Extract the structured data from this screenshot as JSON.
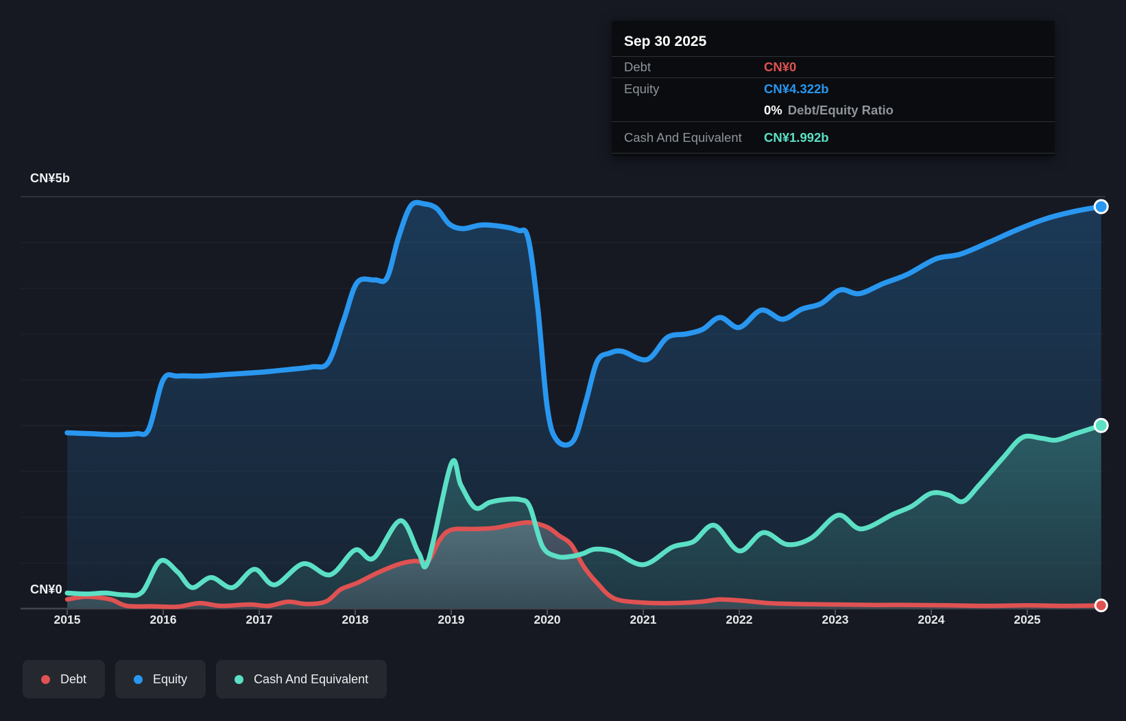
{
  "y_axis": {
    "top_label": "CN¥5b",
    "bottom_label": "CN¥0"
  },
  "x_axis": {
    "years": [
      "2015",
      "2016",
      "2017",
      "2018",
      "2019",
      "2020",
      "2021",
      "2022",
      "2023",
      "2024",
      "2025"
    ]
  },
  "tooltip": {
    "date": "Sep 30 2025",
    "debt_label": "Debt",
    "debt_value": "CN¥0",
    "equity_label": "Equity",
    "equity_value": "CN¥4.322b",
    "ratio_value": "0%",
    "ratio_label": "Debt/Equity Ratio",
    "cash_label": "Cash And Equivalent",
    "cash_value": "CN¥1.992b"
  },
  "legend": {
    "debt": "Debt",
    "equity": "Equity",
    "cash": "Cash And Equivalent"
  },
  "colors": {
    "debt": "#e05252",
    "equity": "#2997f0",
    "cash": "#5ce0c5",
    "background": "#161922",
    "tooltip_bg": "#0a0c0f",
    "legend_bg": "#25292f",
    "grid_major": "rgba(255,255,255,0.15)",
    "grid_minor": "rgba(255,255,255,0.05)",
    "axis_line": "#41464d",
    "debt_fill": "rgba(197,204,216,0.32)",
    "equity_fill": "rgba(41,151,240,0.22)",
    "cash_fill": "rgba(92,224,197,0.22)"
  },
  "chart_data": {
    "type": "area",
    "title": "",
    "xlabel": "",
    "ylabel": "CN¥ (billions)",
    "unit": "CN¥ billions",
    "x_range": [
      2015,
      2025.75
    ],
    "ylim": [
      0,
      5
    ],
    "grid": true,
    "legend_position": "bottom-left",
    "series": [
      {
        "name": "Debt",
        "color": "#e05252",
        "points": [
          [
            2015.0,
            0.1
          ],
          [
            2015.2,
            0.13
          ],
          [
            2015.45,
            0.1
          ],
          [
            2015.62,
            0.03
          ],
          [
            2015.9,
            0.025
          ],
          [
            2016.15,
            0.02
          ],
          [
            2016.38,
            0.06
          ],
          [
            2016.6,
            0.03
          ],
          [
            2016.9,
            0.045
          ],
          [
            2017.1,
            0.03
          ],
          [
            2017.3,
            0.075
          ],
          [
            2017.5,
            0.05
          ],
          [
            2017.7,
            0.08
          ],
          [
            2017.85,
            0.21
          ],
          [
            2018.02,
            0.28
          ],
          [
            2018.25,
            0.4
          ],
          [
            2018.47,
            0.49
          ],
          [
            2018.62,
            0.52
          ],
          [
            2018.76,
            0.52
          ],
          [
            2018.88,
            0.75
          ],
          [
            2019.0,
            0.86
          ],
          [
            2019.25,
            0.87
          ],
          [
            2019.45,
            0.88
          ],
          [
            2019.65,
            0.92
          ],
          [
            2019.82,
            0.94
          ],
          [
            2020.0,
            0.89
          ],
          [
            2020.12,
            0.8
          ],
          [
            2020.25,
            0.7
          ],
          [
            2020.38,
            0.46
          ],
          [
            2020.52,
            0.28
          ],
          [
            2020.7,
            0.11
          ],
          [
            2021.0,
            0.065
          ],
          [
            2021.3,
            0.06
          ],
          [
            2021.6,
            0.075
          ],
          [
            2021.8,
            0.1
          ],
          [
            2022.05,
            0.085
          ],
          [
            2022.3,
            0.06
          ],
          [
            2022.6,
            0.05
          ],
          [
            2023.0,
            0.045
          ],
          [
            2023.4,
            0.04
          ],
          [
            2023.8,
            0.04
          ],
          [
            2024.2,
            0.035
          ],
          [
            2024.6,
            0.03
          ],
          [
            2025.0,
            0.035
          ],
          [
            2025.4,
            0.03
          ],
          [
            2025.77,
            0.035
          ]
        ]
      },
      {
        "name": "Equity",
        "color": "#2997f0",
        "points": [
          [
            2015.0,
            1.92
          ],
          [
            2015.25,
            1.91
          ],
          [
            2015.5,
            1.9
          ],
          [
            2015.72,
            1.91
          ],
          [
            2015.85,
            1.96
          ],
          [
            2016.0,
            2.5
          ],
          [
            2016.15,
            2.54
          ],
          [
            2016.4,
            2.54
          ],
          [
            2016.7,
            2.56
          ],
          [
            2017.0,
            2.58
          ],
          [
            2017.3,
            2.61
          ],
          [
            2017.55,
            2.64
          ],
          [
            2017.72,
            2.69
          ],
          [
            2017.88,
            3.15
          ],
          [
            2018.02,
            3.56
          ],
          [
            2018.2,
            3.59
          ],
          [
            2018.33,
            3.61
          ],
          [
            2018.45,
            4.05
          ],
          [
            2018.58,
            4.4
          ],
          [
            2018.72,
            4.42
          ],
          [
            2018.85,
            4.37
          ],
          [
            2018.98,
            4.2
          ],
          [
            2019.12,
            4.15
          ],
          [
            2019.32,
            4.19
          ],
          [
            2019.55,
            4.17
          ],
          [
            2019.7,
            4.13
          ],
          [
            2019.8,
            4.05
          ],
          [
            2019.9,
            3.3
          ],
          [
            2020.0,
            2.2
          ],
          [
            2020.1,
            1.84
          ],
          [
            2020.27,
            1.83
          ],
          [
            2020.4,
            2.25
          ],
          [
            2020.52,
            2.7
          ],
          [
            2020.65,
            2.79
          ],
          [
            2020.78,
            2.81
          ],
          [
            2021.04,
            2.72
          ],
          [
            2021.25,
            2.96
          ],
          [
            2021.45,
            3.0
          ],
          [
            2021.62,
            3.05
          ],
          [
            2021.8,
            3.18
          ],
          [
            2022.0,
            3.07
          ],
          [
            2022.23,
            3.26
          ],
          [
            2022.45,
            3.16
          ],
          [
            2022.65,
            3.27
          ],
          [
            2022.85,
            3.33
          ],
          [
            2023.05,
            3.48
          ],
          [
            2023.25,
            3.44
          ],
          [
            2023.5,
            3.55
          ],
          [
            2023.75,
            3.65
          ],
          [
            2024.05,
            3.82
          ],
          [
            2024.3,
            3.87
          ],
          [
            2024.6,
            4.0
          ],
          [
            2024.9,
            4.14
          ],
          [
            2025.2,
            4.26
          ],
          [
            2025.5,
            4.34
          ],
          [
            2025.77,
            4.39
          ]
        ]
      },
      {
        "name": "Cash And Equivalent",
        "color": "#5ce0c5",
        "points": [
          [
            2015.0,
            0.17
          ],
          [
            2015.2,
            0.16
          ],
          [
            2015.4,
            0.17
          ],
          [
            2015.6,
            0.15
          ],
          [
            2015.78,
            0.18
          ],
          [
            2015.97,
            0.52
          ],
          [
            2016.15,
            0.4
          ],
          [
            2016.3,
            0.23
          ],
          [
            2016.5,
            0.34
          ],
          [
            2016.72,
            0.23
          ],
          [
            2016.95,
            0.43
          ],
          [
            2017.16,
            0.26
          ],
          [
            2017.46,
            0.49
          ],
          [
            2017.74,
            0.37
          ],
          [
            2018.0,
            0.64
          ],
          [
            2018.19,
            0.55
          ],
          [
            2018.47,
            0.96
          ],
          [
            2018.66,
            0.61
          ],
          [
            2018.76,
            0.52
          ],
          [
            2019.0,
            1.58
          ],
          [
            2019.1,
            1.35
          ],
          [
            2019.25,
            1.1
          ],
          [
            2019.4,
            1.16
          ],
          [
            2019.55,
            1.19
          ],
          [
            2019.72,
            1.19
          ],
          [
            2019.82,
            1.11
          ],
          [
            2019.95,
            0.68
          ],
          [
            2020.1,
            0.57
          ],
          [
            2020.25,
            0.57
          ],
          [
            2020.37,
            0.6
          ],
          [
            2020.5,
            0.65
          ],
          [
            2020.7,
            0.62
          ],
          [
            2021.0,
            0.48
          ],
          [
            2021.3,
            0.67
          ],
          [
            2021.52,
            0.73
          ],
          [
            2021.74,
            0.91
          ],
          [
            2022.0,
            0.63
          ],
          [
            2022.25,
            0.83
          ],
          [
            2022.5,
            0.7
          ],
          [
            2022.75,
            0.77
          ],
          [
            2023.03,
            1.02
          ],
          [
            2023.27,
            0.87
          ],
          [
            2023.6,
            1.03
          ],
          [
            2023.8,
            1.12
          ],
          [
            2024.0,
            1.26
          ],
          [
            2024.18,
            1.24
          ],
          [
            2024.33,
            1.17
          ],
          [
            2024.5,
            1.35
          ],
          [
            2024.75,
            1.65
          ],
          [
            2024.95,
            1.87
          ],
          [
            2025.15,
            1.86
          ],
          [
            2025.3,
            1.84
          ],
          [
            2025.5,
            1.91
          ],
          [
            2025.77,
            2.0
          ]
        ]
      }
    ]
  }
}
